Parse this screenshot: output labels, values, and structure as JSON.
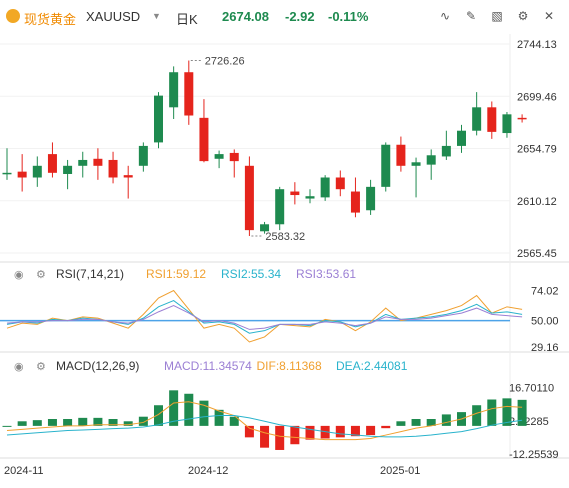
{
  "header": {
    "symbol_cn": "现货黄金",
    "symbol": "XAUUSD",
    "timeframe": "日K",
    "price": "2674.08",
    "change": "-2.92",
    "change_pct": "-0.11%",
    "icons": [
      "line-chart-icon",
      "draw-icon",
      "draw-tools-icon",
      "settings-icon",
      "close-icon"
    ]
  },
  "colors": {
    "up": "#1e8a4f",
    "down": "#e5241c",
    "rsi1": "#f0a030",
    "rsi2": "#29b3cc",
    "rsi3": "#9b7fd4",
    "macd": "#9b7fd4",
    "dif": "#f0a030",
    "dea": "#29b3cc",
    "refline": "#4da3e8"
  },
  "chart_data": [
    {
      "type": "candlestick",
      "title": "",
      "y_ticks": [
        "2744.13",
        "2699.46",
        "2654.79",
        "2610.12",
        "2565.45"
      ],
      "ylim": [
        2565.45,
        2744.13
      ],
      "x_ticks": [
        "2024-11",
        "2024-12",
        "2025-01"
      ],
      "annotations": {
        "high_label": "2726.26",
        "low_label": "2583.32"
      },
      "candles": [
        {
          "o": 2633,
          "h": 2655,
          "l": 2628,
          "c": 2634
        },
        {
          "o": 2635,
          "h": 2650,
          "l": 2618,
          "c": 2630
        },
        {
          "o": 2630,
          "h": 2648,
          "l": 2622,
          "c": 2640
        },
        {
          "o": 2650,
          "h": 2660,
          "l": 2630,
          "c": 2634
        },
        {
          "o": 2633,
          "h": 2645,
          "l": 2620,
          "c": 2640
        },
        {
          "o": 2640,
          "h": 2652,
          "l": 2630,
          "c": 2645
        },
        {
          "o": 2646,
          "h": 2655,
          "l": 2628,
          "c": 2640
        },
        {
          "o": 2645,
          "h": 2652,
          "l": 2625,
          "c": 2630
        },
        {
          "o": 2632,
          "h": 2640,
          "l": 2612,
          "c": 2630
        },
        {
          "o": 2640,
          "h": 2660,
          "l": 2635,
          "c": 2657
        },
        {
          "o": 2660,
          "h": 2703,
          "l": 2655,
          "c": 2700
        },
        {
          "o": 2690,
          "h": 2725,
          "l": 2680,
          "c": 2720
        },
        {
          "o": 2720,
          "h": 2730,
          "l": 2675,
          "c": 2683
        },
        {
          "o": 2681,
          "h": 2697,
          "l": 2643,
          "c": 2644
        },
        {
          "o": 2646,
          "h": 2653,
          "l": 2638,
          "c": 2650
        },
        {
          "o": 2651,
          "h": 2654,
          "l": 2630,
          "c": 2644
        },
        {
          "o": 2640,
          "h": 2648,
          "l": 2580,
          "c": 2585
        },
        {
          "o": 2584,
          "h": 2592,
          "l": 2582,
          "c": 2590
        },
        {
          "o": 2590,
          "h": 2622,
          "l": 2585,
          "c": 2620
        },
        {
          "o": 2618,
          "h": 2626,
          "l": 2607,
          "c": 2615
        },
        {
          "o": 2612,
          "h": 2620,
          "l": 2608,
          "c": 2614
        },
        {
          "o": 2613,
          "h": 2632,
          "l": 2610,
          "c": 2630
        },
        {
          "o": 2630,
          "h": 2636,
          "l": 2614,
          "c": 2620
        },
        {
          "o": 2618,
          "h": 2630,
          "l": 2596,
          "c": 2600
        },
        {
          "o": 2602,
          "h": 2628,
          "l": 2598,
          "c": 2622
        },
        {
          "o": 2622,
          "h": 2660,
          "l": 2618,
          "c": 2658
        },
        {
          "o": 2658,
          "h": 2665,
          "l": 2635,
          "c": 2640
        },
        {
          "o": 2640,
          "h": 2647,
          "l": 2613,
          "c": 2643
        },
        {
          "o": 2641,
          "h": 2654,
          "l": 2628,
          "c": 2649
        },
        {
          "o": 2648,
          "h": 2670,
          "l": 2645,
          "c": 2657
        },
        {
          "o": 2657,
          "h": 2675,
          "l": 2651,
          "c": 2670
        },
        {
          "o": 2670,
          "h": 2703,
          "l": 2666,
          "c": 2690
        },
        {
          "o": 2690,
          "h": 2695,
          "l": 2663,
          "c": 2669
        },
        {
          "o": 2668,
          "h": 2686,
          "l": 2664,
          "c": 2684
        },
        {
          "o": 2681,
          "h": 2684,
          "l": 2677,
          "c": 2680
        }
      ]
    },
    {
      "type": "line",
      "title": "RSI(7,14,21)",
      "legend": [
        {
          "label": "RSI1:59.12"
        },
        {
          "label": "RSI2:55.34"
        },
        {
          "label": "RSI3:53.61"
        }
      ],
      "y_ticks": [
        "74.02",
        "50.00",
        "29.16"
      ],
      "ylim": [
        25,
        80
      ],
      "series": [
        {
          "name": "RSI1",
          "values": [
            44,
            48,
            47,
            52,
            50,
            53,
            52,
            48,
            44,
            55,
            68,
            74,
            59,
            44,
            47,
            44,
            33,
            37,
            47,
            46,
            45,
            51,
            49,
            42,
            49,
            60,
            50,
            52,
            55,
            58,
            62,
            70,
            56,
            61,
            59
          ]
        },
        {
          "name": "RSI2",
          "values": [
            47,
            49,
            48,
            51,
            50,
            52,
            51,
            49,
            47,
            52,
            61,
            66,
            57,
            48,
            49,
            47,
            40,
            42,
            47,
            47,
            46,
            50,
            49,
            45,
            48,
            55,
            51,
            52,
            53,
            55,
            58,
            63,
            56,
            57,
            55
          ]
        },
        {
          "name": "RSI3",
          "values": [
            48,
            49,
            49,
            50,
            50,
            51,
            51,
            49,
            48,
            51,
            57,
            62,
            56,
            49,
            50,
            48,
            43,
            44,
            47,
            47,
            47,
            49,
            48,
            46,
            48,
            53,
            51,
            51,
            52,
            54,
            56,
            60,
            55,
            54,
            53
          ]
        }
      ]
    },
    {
      "type": "bar",
      "title": "MACD(12,26,9)",
      "legend": [
        {
          "label": "MACD:11.34574"
        },
        {
          "label": "DIF:8.11368"
        },
        {
          "label": "DEA:2.44081"
        }
      ],
      "y_ticks": [
        "16.70110",
        "2.22285",
        "-12.25539"
      ],
      "ylim": [
        -14,
        20
      ],
      "series": [
        {
          "name": "MACD",
          "values": [
            0,
            2,
            2.5,
            3,
            3,
            3.5,
            3.5,
            3,
            2,
            4,
            9,
            15.5,
            14,
            11,
            7,
            4,
            -5,
            -9.5,
            -10.5,
            -8,
            -6,
            -5.5,
            -5,
            -4.5,
            -4,
            -1,
            2,
            3,
            3,
            5,
            6,
            9,
            11.5,
            12,
            11.35
          ]
        },
        {
          "name": "DIF",
          "values": [
            -2,
            -1.5,
            -1,
            -0.5,
            0,
            0,
            0.5,
            0.5,
            0.5,
            1.5,
            5,
            10,
            10.5,
            9,
            6.5,
            4.5,
            -1,
            -3,
            -4.5,
            -5,
            -5.5,
            -6,
            -6,
            -6,
            -5.5,
            -4,
            -2.5,
            -1,
            0,
            1.5,
            3,
            5.5,
            7.5,
            8.5,
            8.11
          ]
        },
        {
          "name": "DEA",
          "values": [
            -4,
            -3.5,
            -3,
            -2.5,
            -2,
            -1.8,
            -1.5,
            -1.2,
            -1,
            -0.5,
            0.5,
            2,
            3,
            4,
            4.5,
            4.5,
            3.5,
            2,
            0.5,
            -0.5,
            -1.5,
            -2.5,
            -3.5,
            -4,
            -4.5,
            -4.8,
            -4.8,
            -4.5,
            -4,
            -3.2,
            -2.5,
            -1.2,
            0.3,
            1.5,
            2.44
          ]
        }
      ]
    }
  ]
}
